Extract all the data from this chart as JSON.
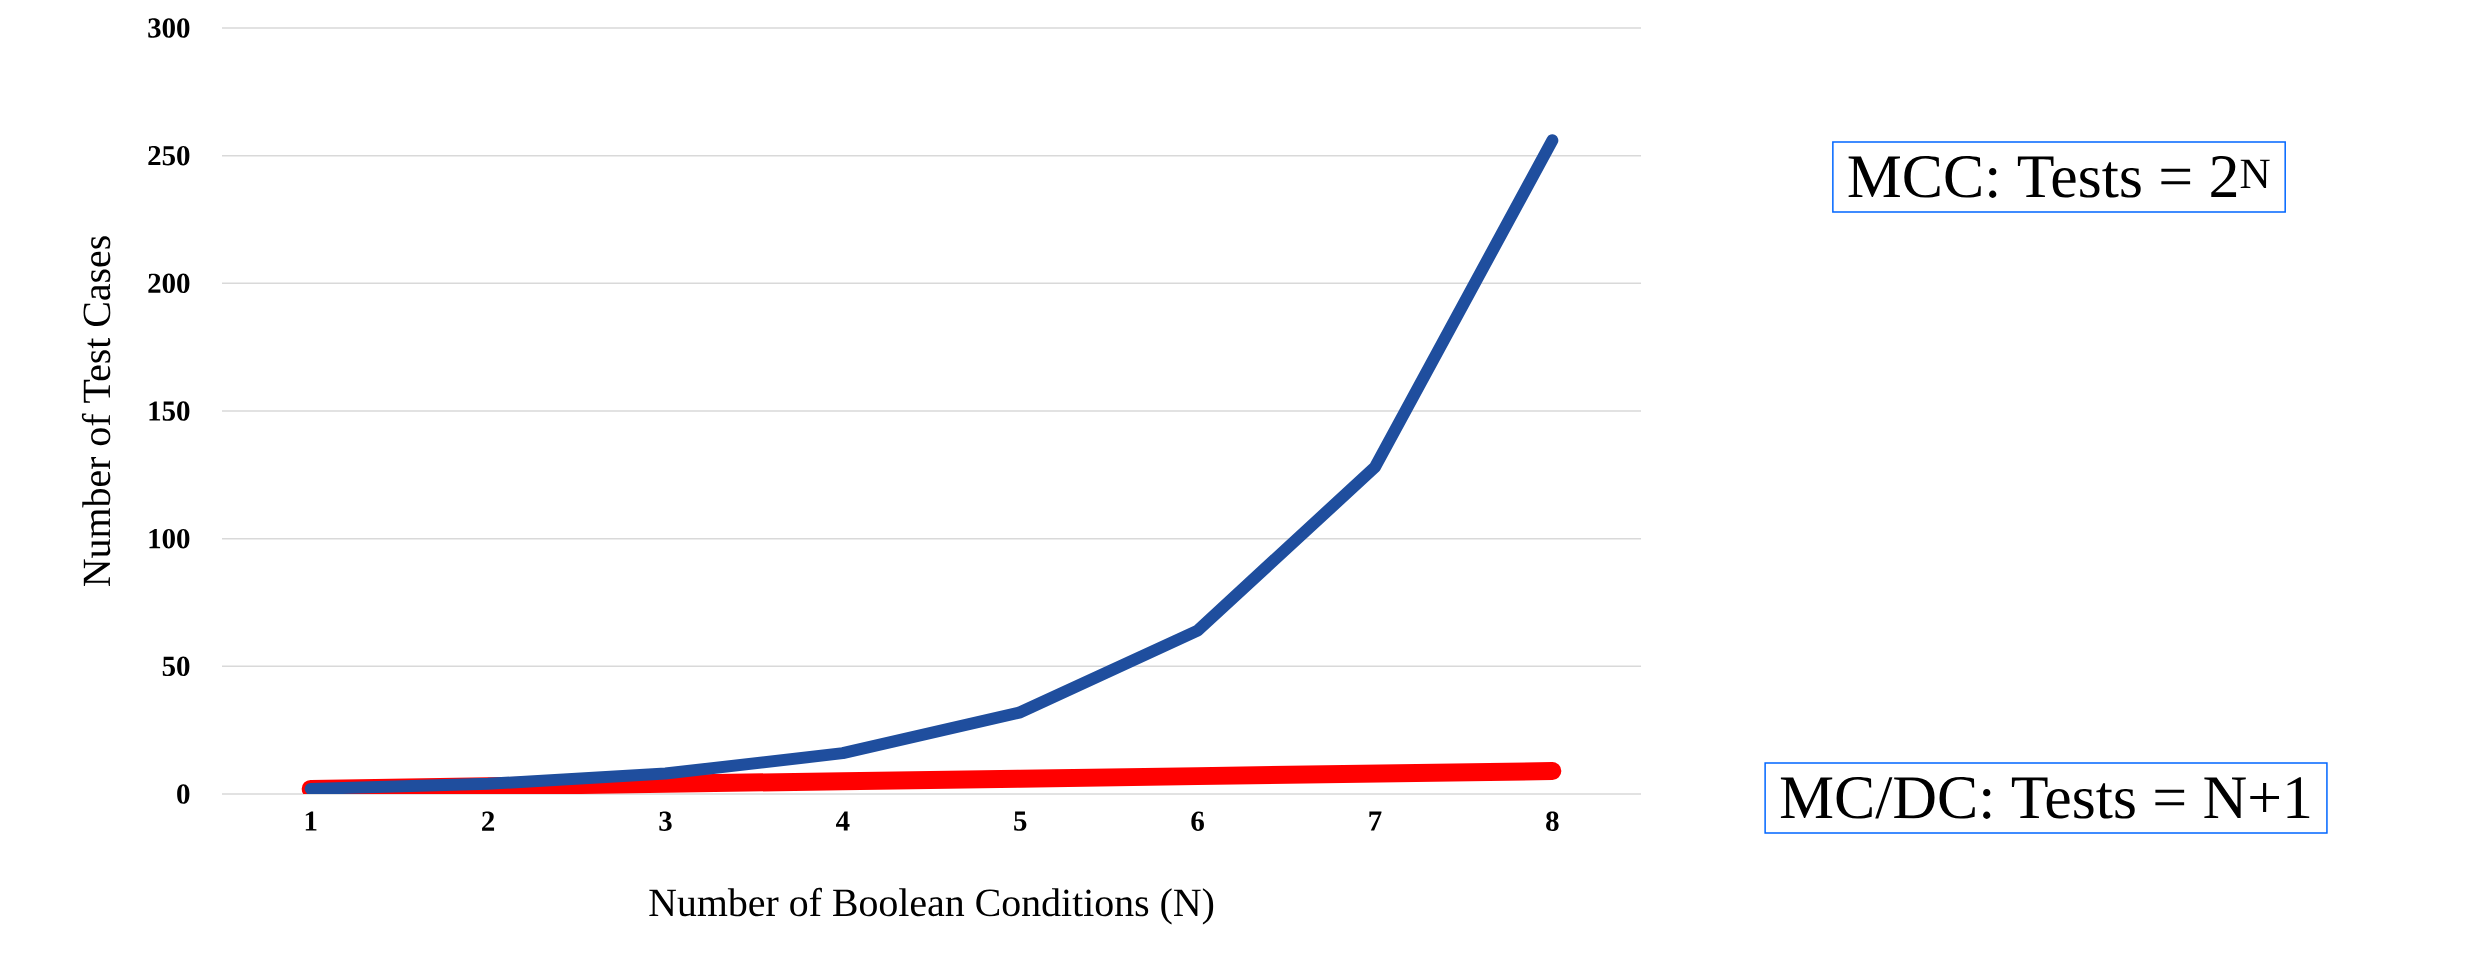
{
  "chart_data": {
    "type": "line",
    "xlabel": "Number of Boolean Conditions (N)",
    "ylabel": "Number of Test Cases",
    "categories": [
      "1",
      "2",
      "3",
      "4",
      "5",
      "6",
      "7",
      "8"
    ],
    "series": [
      {
        "name": "MCC: Tests = 2$^{N}$",
        "color": "#1f4e9e",
        "values": [
          2,
          4,
          8,
          16,
          32,
          64,
          128,
          256
        ]
      },
      {
        "name": "MC/DC: Tests = N+1",
        "color": "#ff0000",
        "values": [
          2,
          3,
          4,
          5,
          6,
          7,
          8,
          9
        ]
      }
    ],
    "ylim": [
      0,
      300
    ],
    "yticks": [
      0,
      50,
      100,
      150,
      200,
      250,
      300
    ],
    "grid": "y",
    "marker": "none",
    "line_style": "solid"
  }
}
